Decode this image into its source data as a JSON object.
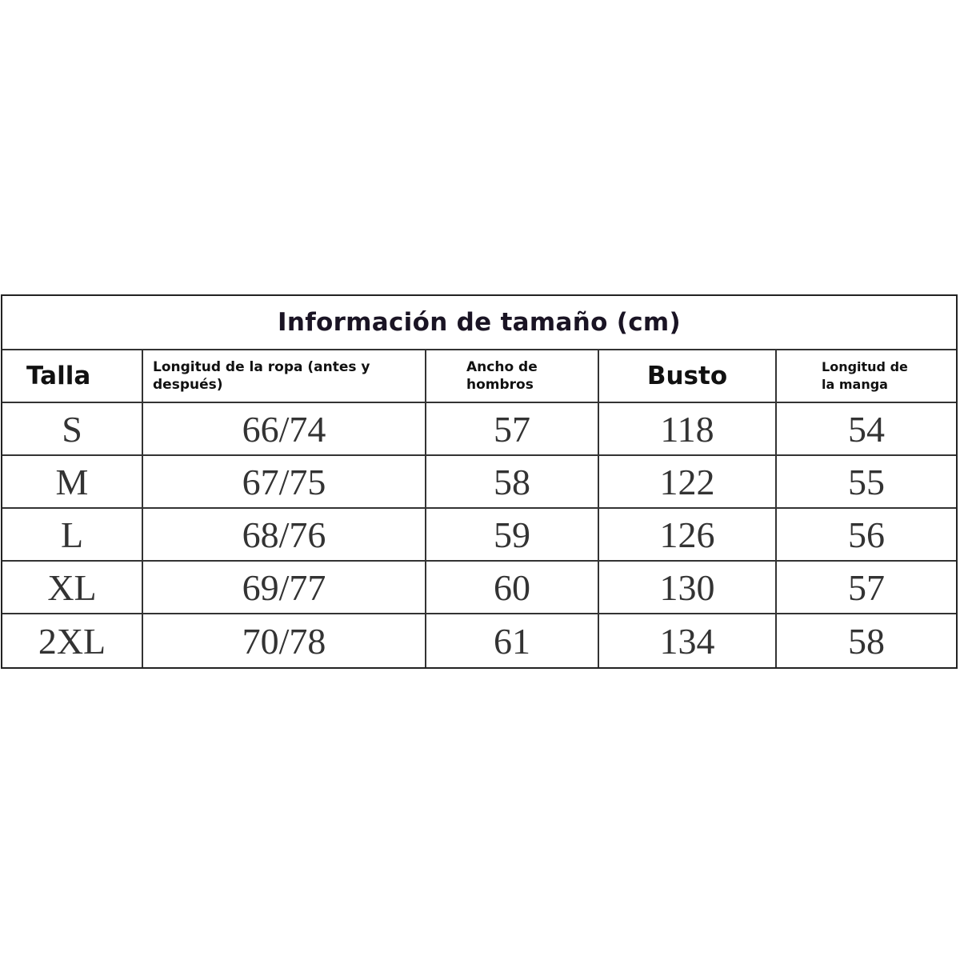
{
  "table": {
    "title": "Información de tamaño (cm)",
    "headers": [
      "Talla",
      "Longitud de la ropa (antes y después)",
      "Ancho de hombros",
      "Busto",
      "Longitud de la manga"
    ],
    "rows": [
      [
        "S",
        "66/74",
        "57",
        "118",
        "54"
      ],
      [
        "M",
        "67/75",
        "58",
        "122",
        "55"
      ],
      [
        "L",
        "68/76",
        "59",
        "126",
        "56"
      ],
      [
        "XL",
        "69/77",
        "60",
        "130",
        "57"
      ],
      [
        "2XL",
        "70/78",
        "61",
        "134",
        "58"
      ]
    ]
  }
}
